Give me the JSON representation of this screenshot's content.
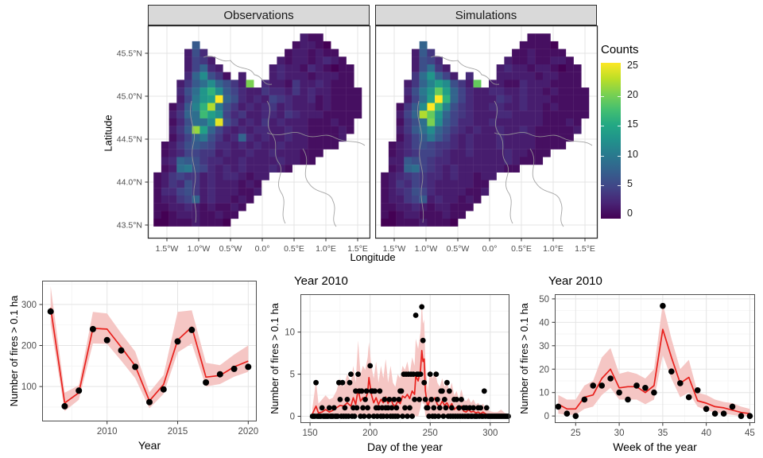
{
  "colors": {
    "red_line": "#e8201c",
    "ribbon": "#f5c6c4",
    "point": "#000000",
    "grid_major": "#e4e4e4",
    "grid_minor": "#f3f3f3",
    "panel_border": "#4d4d4d",
    "map_border": "#2b2b2b",
    "strip_bg": "#d9d9d9",
    "tick_text": "#4d4d4d",
    "boundary_line": "#9a9a9a",
    "viridis": [
      "#440154",
      "#482475",
      "#414487",
      "#355f8d",
      "#2a788e",
      "#21918c",
      "#22a884",
      "#44bf70",
      "#7ad151",
      "#bddf26",
      "#fde725"
    ]
  },
  "chart_data": [
    {
      "type": "heatmap",
      "title": "Observations",
      "xlabel": "Longitude",
      "ylabel": "Latitude",
      "x_ticks": [
        "1.5°W",
        "1.0°W",
        "0.5°W",
        "0.0°",
        "0.5°E",
        "1.0°E",
        "1.5°E"
      ],
      "y_ticks": [
        "45.5°N",
        "45.0°N",
        "44.5°N",
        "44.0°N",
        "43.5°N"
      ],
      "legend": {
        "title": "Counts",
        "ticks": [
          25,
          20,
          15,
          10,
          5,
          0
        ],
        "range": [
          0,
          25
        ],
        "palette": "viridis"
      },
      "value_encoding": "char grid: . = no cell, 0-9 = counts 0-9, a-p = counts 10-25",
      "grid": [
        "...................211.....",
        ".....7............12210....",
        "....263..........1221211...",
        "....2542........212212321..",
        "....25832......23221321011.",
        "....38c641.2...23222122211.",
        "...2479c8642k.322142232111.",
        "...369dgc753224332423221111",
        "...25adep863232543223121111",
        "..137bgma642323423222121111",
        "..2489hec534223324322211111",
        "..13699co64232423222111211.",
        "..247le8532323322322111121.",
        "..1358a642383232232211112..",
        ".12467653323232232221111...",
        ".123554423223223222111.....",
        ".23876433223222232211......",
        ".129a6532323222321.........",
        "124544232332122............",
        "12436423222121.............",
        "13356423222112.............",
        "1224582322121..............",
        "112232121121...............",
        "10122211211................",
        "0011121110................."
      ]
    },
    {
      "type": "heatmap",
      "title": "Simulations",
      "xlabel": "Longitude",
      "ylabel": "Latitude",
      "x_ticks": [
        "1.5°W",
        "1.0°W",
        "0.5°W",
        "0.0°",
        "0.5°E",
        "1.0°E",
        "1.5°E"
      ],
      "y_ticks": [
        "45.5°N",
        "45.0°N",
        "44.5°N",
        "44.0°N",
        "43.5°N"
      ],
      "legend": {
        "title": "Counts",
        "ticks": [
          25,
          20,
          15,
          10,
          5,
          0
        ],
        "range": [
          0,
          25
        ],
        "palette": "viridis"
      },
      "value_encoding": "char grid: . = no cell, 0-9 = counts 0-9, a-p = counts 10-25",
      "grid": [
        "...................111.....",
        ".....8............11110....",
        "....274..........1121111...",
        "....2653........211211221..",
        "....26942......23221221011.",
        "....49d852.3...22222122111.",
        "...248bec642j.221132221111.",
        "...36adje853223322322121111",
        "...259epg853222432322211111",
        "..147cphb643223322322121111",
        "..258mjd8543222332222111111",
        "..1469kc753322322222211121.",
        "..2479c8643232232232111112.",
        "..1357a753232223222211111..",
        ".12356544323222322221111...",
        ".123455432232222322111.....",
        ".22765433222222232111......",
        ".12895432322222211.........",
        "123454332322122............",
        "12435432222211.............",
        "12346532222112.............",
        "1224572322121..............",
        "112232122111...............",
        "10122111211................",
        "0011121110................."
      ]
    },
    {
      "type": "line",
      "title": "",
      "xlabel": "Year",
      "ylabel": "Number of fires > 0.1 ha",
      "x_ticks": [
        2010,
        2015,
        2020
      ],
      "y_ticks": [
        100,
        200,
        300
      ],
      "xlim": [
        2005.4,
        2020.6
      ],
      "ylim": [
        15,
        358
      ],
      "x": [
        2006,
        2007,
        2008,
        2009,
        2010,
        2011,
        2012,
        2013,
        2014,
        2015,
        2016,
        2017,
        2018,
        2019,
        2020
      ],
      "points": [
        283,
        52,
        90,
        240,
        213,
        188,
        148,
        62,
        93,
        210,
        238,
        110,
        130,
        143,
        148
      ],
      "line": [
        292,
        60,
        85,
        242,
        240,
        196,
        150,
        65,
        105,
        213,
        245,
        123,
        127,
        148,
        162
      ],
      "band_low": [
        252,
        40,
        68,
        205,
        204,
        163,
        120,
        47,
        82,
        183,
        205,
        100,
        106,
        124,
        136
      ],
      "band_high": [
        345,
        85,
        103,
        282,
        278,
        230,
        185,
        86,
        128,
        282,
        286,
        158,
        152,
        178,
        200
      ]
    },
    {
      "type": "line",
      "title": "Year 2010",
      "xlabel": "Day of the year",
      "ylabel": "Number of fires > 0.1 ha",
      "x_ticks": [
        150,
        200,
        250,
        300
      ],
      "y_ticks": [
        0,
        5,
        10
      ],
      "xlim": [
        142,
        316
      ],
      "ylim": [
        -0.8,
        14.5
      ],
      "day_range": [
        152,
        315
      ],
      "points_nonzero": {
        "155": 4,
        "160": 1,
        "166": 1,
        "170": 1,
        "174": 4,
        "175": 2,
        "177": 4,
        "179": 1,
        "181": 2,
        "183": 4,
        "184": 5,
        "186": 1,
        "188": 3,
        "189": 1,
        "190": 5,
        "191": 3,
        "193": 3,
        "194": 1,
        "196": 2,
        "197": 3,
        "198": 1,
        "200": 6,
        "201": 3,
        "202": 3,
        "204": 3,
        "205": 1,
        "207": 1,
        "208": 3,
        "210": 1,
        "212": 2,
        "213": 1,
        "215": 1,
        "216": 2,
        "218": 1,
        "220": 2,
        "222": 1,
        "224": 2,
        "225": 3,
        "226": 3,
        "228": 5,
        "229": 1,
        "230": 5,
        "232": 5,
        "233": 1,
        "234": 5,
        "236": 5,
        "237": 2,
        "238": 12,
        "239": 5,
        "240": 5,
        "241": 2,
        "242": 5,
        "243": 13,
        "244": 9,
        "245": 4,
        "246": 2,
        "247": 1,
        "248": 1,
        "250": 5,
        "251": 2,
        "253": 1,
        "255": 5,
        "256": 2,
        "258": 1,
        "259": 3,
        "260": 3,
        "262": 2,
        "263": 1,
        "264": 4,
        "266": 3,
        "268": 1,
        "270": 2,
        "272": 2,
        "274": 1,
        "276": 2,
        "278": 1,
        "280": 1,
        "283": 1,
        "286": 1,
        "290": 1,
        "292": 1,
        "295": 3,
        "297": 1
      },
      "line_x": [
        152,
        155,
        157,
        160,
        163,
        166,
        169,
        172,
        175,
        178,
        181,
        184,
        186,
        188,
        190,
        192,
        194,
        196,
        198,
        199,
        201,
        203,
        205,
        207,
        209,
        211,
        213,
        215,
        217,
        219,
        221,
        223,
        225,
        227,
        229,
        231,
        233,
        235,
        237,
        238,
        240,
        242,
        243,
        244,
        245,
        246,
        248,
        250,
        252,
        254,
        256,
        258,
        260,
        262,
        264,
        266,
        268,
        270,
        272,
        274,
        276,
        278,
        280,
        282,
        284,
        286,
        288,
        290,
        292,
        294,
        296,
        298,
        300,
        303,
        306,
        309,
        312,
        315
      ],
      "line": [
        0.3,
        1.2,
        0.4,
        0.5,
        0.8,
        0.5,
        0.7,
        1.0,
        1.3,
        1.2,
        1.6,
        1.2,
        2.2,
        1.4,
        3.2,
        1.8,
        2.2,
        2.0,
        2.8,
        4.6,
        2.6,
        1.6,
        2.2,
        1.4,
        2.0,
        1.6,
        2.3,
        1.5,
        2.2,
        1.4,
        1.2,
        1.8,
        1.5,
        2.4,
        2.2,
        2.6,
        2.1,
        3.0,
        2.6,
        4.8,
        4.2,
        5.5,
        7.8,
        6.5,
        6.8,
        3.0,
        1.0,
        2.2,
        1.8,
        2.2,
        1.4,
        1.2,
        1.8,
        1.3,
        1.6,
        1.0,
        1.5,
        0.8,
        1.1,
        0.7,
        1.2,
        0.6,
        0.5,
        0.8,
        0.5,
        0.6,
        0.4,
        0.5,
        0.3,
        0.5,
        0.3,
        0.2,
        0.15,
        0.1,
        0.1,
        0.1,
        0.1,
        0.1
      ],
      "band_low": [
        0,
        0,
        0,
        0,
        0,
        0,
        0,
        0,
        0,
        0,
        0,
        0,
        0,
        0,
        0,
        0,
        0,
        0,
        0,
        0,
        0,
        0,
        0,
        0,
        0,
        0,
        0,
        0,
        0,
        0,
        0,
        0,
        0,
        0,
        0,
        0,
        0,
        0,
        0,
        0,
        0,
        1,
        2,
        1.5,
        1.5,
        0,
        0,
        0,
        0,
        0,
        0,
        0,
        0,
        0,
        0,
        0,
        0,
        0,
        0,
        0,
        0,
        0,
        0,
        0,
        0,
        0,
        0,
        0,
        0,
        0,
        0,
        0,
        0,
        0,
        0,
        0,
        0,
        0
      ],
      "band_high": [
        1,
        4.2,
        1.5,
        2,
        2.5,
        2,
        2.2,
        3,
        4.5,
        3.5,
        5,
        4,
        6,
        4,
        9,
        5,
        6,
        5.5,
        7,
        8.8,
        6,
        4.5,
        6.5,
        4,
        6,
        4.5,
        6.8,
        4,
        6,
        4,
        3.5,
        5,
        4.5,
        6,
        5.5,
        6.5,
        5,
        7,
        6,
        9.2,
        8,
        10,
        13.8,
        11,
        11.5,
        6.5,
        3,
        5.5,
        4.5,
        5.5,
        4,
        3.5,
        4.5,
        3.5,
        4.2,
        3,
        4,
        2.5,
        3,
        2,
        3.2,
        2,
        1.8,
        2.2,
        1.6,
        2,
        1.4,
        1.6,
        1.2,
        1.5,
        1,
        0.8,
        0.6,
        0.5,
        0.5,
        0.8,
        0.4,
        0.3
      ]
    },
    {
      "type": "line",
      "title": "Year 2010",
      "xlabel": "Week of the year",
      "ylabel": "Number of fires > 0.1 ha",
      "x_ticks": [
        25,
        30,
        35,
        40,
        45
      ],
      "y_ticks": [
        0,
        10,
        20,
        30,
        40,
        50
      ],
      "xlim": [
        22.6,
        45.6
      ],
      "ylim": [
        -3,
        52
      ],
      "x": [
        23,
        24,
        25,
        26,
        27,
        28,
        29,
        30,
        31,
        32,
        33,
        34,
        35,
        36,
        37,
        38,
        39,
        40,
        41,
        42,
        43,
        44,
        45
      ],
      "points": [
        4,
        1,
        0,
        7,
        13,
        13,
        16,
        10,
        7,
        13,
        12,
        10,
        47,
        19,
        14,
        8,
        11,
        3,
        1,
        1,
        4,
        0,
        0
      ],
      "line": [
        5,
        3,
        3,
        8,
        9,
        16,
        20,
        12,
        12.5,
        12.5,
        10,
        13,
        37,
        25,
        14,
        16.5,
        6.5,
        5.5,
        4,
        3.5,
        2.5,
        1.5,
        1
      ],
      "band_low": [
        1,
        0.5,
        0.5,
        3,
        4,
        9,
        12,
        7,
        7,
        7,
        5,
        7,
        26,
        16,
        8,
        10,
        4,
        2.5,
        1.5,
        1,
        0.5,
        0,
        0
      ],
      "band_high": [
        9,
        7,
        7,
        13,
        15,
        25,
        29,
        18,
        19,
        18,
        16,
        20,
        48,
        33,
        20,
        24,
        10,
        9,
        7,
        6,
        5.5,
        4,
        3
      ]
    }
  ]
}
